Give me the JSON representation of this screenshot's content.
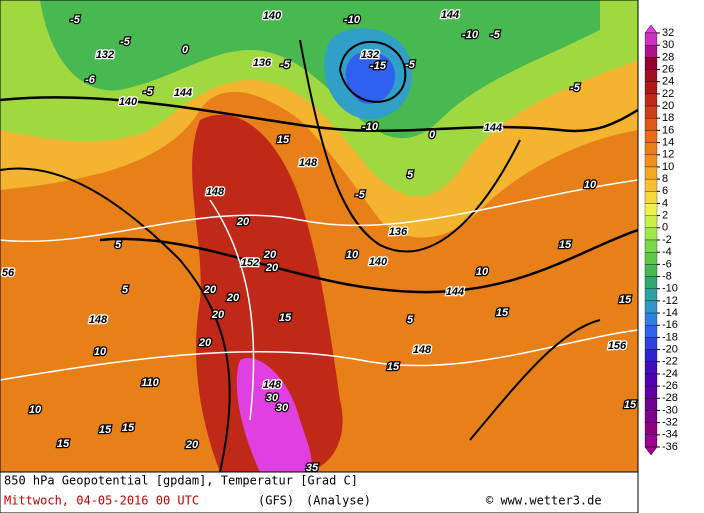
{
  "map": {
    "labels": [
      "-5",
      "140",
      "-10",
      "144",
      "-5",
      "-10",
      "132",
      "-5",
      "0",
      "136",
      "-5",
      "132",
      "-15",
      "-5",
      "-6",
      "140",
      "-5",
      "144",
      "-10",
      "0",
      "144",
      "-5",
      "15",
      "148",
      "-5",
      "5",
      "148",
      "20",
      "10",
      "136",
      "5",
      "10",
      "140",
      "20",
      "15",
      "152",
      "20",
      "10",
      "144",
      "5",
      "20",
      "20",
      "5",
      "15",
      "15",
      "15",
      "148",
      "20",
      "20",
      "10",
      "148",
      "156",
      "15",
      "110",
      "148",
      "30",
      "30",
      "10",
      "15",
      "15",
      "15",
      "20",
      "15",
      "35",
      "56"
    ]
  },
  "colorbar": {
    "ticks": [
      32,
      30,
      28,
      26,
      24,
      22,
      20,
      18,
      16,
      14,
      12,
      10,
      8,
      6,
      4,
      2,
      0,
      -2,
      -4,
      -6,
      -8,
      -10,
      -12,
      -14,
      -16,
      -18,
      -20,
      -22,
      -24,
      -26,
      -28,
      -30,
      -32,
      -34,
      -36
    ],
    "colors": [
      "#e040e0",
      "#d030c0",
      "#b0108a",
      "#900030",
      "#a01020",
      "#b01818",
      "#c02818",
      "#d03c18",
      "#e05818",
      "#e86c18",
      "#ec8018",
      "#f09018",
      "#f4a820",
      "#f8c030",
      "#f8d838",
      "#f0f048",
      "#c8f048",
      "#a0e848",
      "#78d848",
      "#60c848",
      "#48b850",
      "#30a870",
      "#30a0a0",
      "#3098c8",
      "#3080e0",
      "#3060f0",
      "#3040e0",
      "#3020d0",
      "#4010c0",
      "#5000b0",
      "#6000a0",
      "#700090",
      "#800090",
      "#900080",
      "#a00090"
    ]
  },
  "footer": {
    "line1": "850 hPa Geopotential [gpdam], Temperatur [Grad C]",
    "date": "Mittwoch, 04-05-2016  00 UTC",
    "model": "(GFS)",
    "kind": "(Analyse)",
    "source": "© www.wetter3.de"
  }
}
